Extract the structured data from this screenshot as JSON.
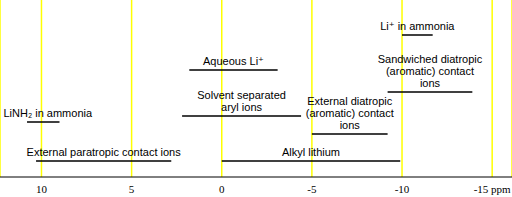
{
  "chart_data": {
    "type": "range",
    "series": [
      {
        "name": "LiNH₂ in ammonia",
        "values": [
          10.8,
          9.0
        ]
      },
      {
        "name": "External paratropic contact ions",
        "values": [
          10.3,
          2.8
        ]
      },
      {
        "name": "Aqueous Li⁺",
        "values": [
          1.8,
          -3.1
        ]
      },
      {
        "name": "Solvent separated\naryl ions",
        "values": [
          2.2,
          -4.4
        ]
      },
      {
        "name": "Alkyl lithium",
        "values": [
          0,
          -9.9
        ]
      },
      {
        "name": "External diatropic\n(aromatic) contact\nions",
        "values": [
          -5,
          -9.2
        ]
      },
      {
        "name": "Li⁺ in ammonia",
        "values": [
          -10,
          -11.7
        ]
      },
      {
        "name": "Sandwiched diatropic\n(aromatic) contact\nions",
        "values": [
          -9.2,
          -13.9
        ]
      }
    ],
    "xlim": [
      12.3,
      -16.1
    ],
    "xticks": [
      10,
      5,
      0,
      -5,
      -10,
      {
        "value": -15,
        "label": "-15 ppm"
      }
    ],
    "grid": true,
    "color": "#000000"
  }
}
